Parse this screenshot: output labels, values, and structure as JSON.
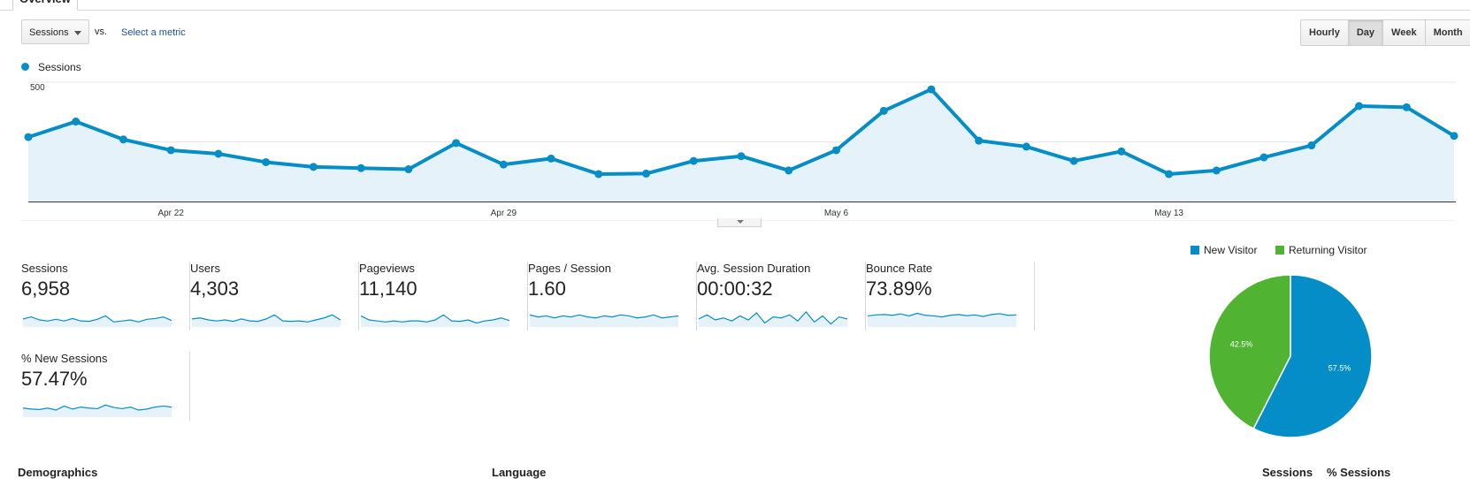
{
  "tabs": {
    "overview": "Overview"
  },
  "toolbar": {
    "metric": "Sessions",
    "vs": "vs.",
    "select_metric": "Select a metric",
    "granularity": [
      "Hourly",
      "Day",
      "Week",
      "Month"
    ],
    "active_granularity": "Day"
  },
  "chart_data": {
    "type": "area",
    "series": [
      {
        "name": "Sessions",
        "color": "#058dc7",
        "values": [
          270,
          335,
          260,
          215,
          200,
          165,
          145,
          140,
          135,
          245,
          155,
          180,
          115,
          117,
          170,
          190,
          130,
          215,
          380,
          470,
          255,
          230,
          170,
          210,
          115,
          130,
          185,
          235,
          400,
          395,
          275
        ]
      }
    ],
    "ylim": [
      0,
      500
    ],
    "y_ticks": [
      "500",
      "250"
    ],
    "x_tick_labels": [
      {
        "label": "Apr 22",
        "index": 3
      },
      {
        "label": "Apr 29",
        "index": 10
      },
      {
        "label": "May 6",
        "index": 17
      },
      {
        "label": "May 13",
        "index": 24
      }
    ],
    "grid": true
  },
  "metrics": [
    {
      "label": "Sessions",
      "value": "6,958",
      "spark": [
        0.4,
        0.5,
        0.35,
        0.3,
        0.38,
        0.3,
        0.42,
        0.3,
        0.28,
        0.38,
        0.55,
        0.25,
        0.3,
        0.35,
        0.25,
        0.38,
        0.42,
        0.5,
        0.32
      ]
    },
    {
      "label": "Users",
      "value": "4,303",
      "spark": [
        0.4,
        0.45,
        0.35,
        0.3,
        0.35,
        0.28,
        0.4,
        0.3,
        0.28,
        0.4,
        0.6,
        0.3,
        0.28,
        0.3,
        0.25,
        0.35,
        0.45,
        0.6,
        0.35
      ]
    },
    {
      "label": "Pageviews",
      "value": "11,140",
      "spark": [
        0.55,
        0.35,
        0.3,
        0.25,
        0.3,
        0.25,
        0.3,
        0.3,
        0.25,
        0.35,
        0.6,
        0.3,
        0.28,
        0.35,
        0.2,
        0.3,
        0.35,
        0.45,
        0.32
      ]
    },
    {
      "label": "Pages / Session",
      "value": "1.60",
      "spark": [
        0.6,
        0.5,
        0.55,
        0.45,
        0.55,
        0.5,
        0.6,
        0.5,
        0.45,
        0.55,
        0.5,
        0.6,
        0.55,
        0.45,
        0.5,
        0.6,
        0.45,
        0.5,
        0.55
      ]
    },
    {
      "label": "Avg. Session Duration",
      "value": "00:00:32",
      "spark": [
        0.4,
        0.6,
        0.35,
        0.45,
        0.3,
        0.55,
        0.35,
        0.7,
        0.2,
        0.5,
        0.45,
        0.6,
        0.3,
        0.75,
        0.25,
        0.55,
        0.15,
        0.5,
        0.4
      ]
    },
    {
      "label": "Bounce Rate",
      "value": "73.89%",
      "spark": [
        0.55,
        0.6,
        0.62,
        0.58,
        0.65,
        0.55,
        0.68,
        0.58,
        0.55,
        0.5,
        0.58,
        0.62,
        0.56,
        0.6,
        0.52,
        0.62,
        0.66,
        0.58,
        0.6
      ]
    },
    {
      "label": "% New Sessions",
      "value": "57.47%",
      "spark": [
        0.45,
        0.4,
        0.38,
        0.45,
        0.35,
        0.55,
        0.4,
        0.5,
        0.45,
        0.42,
        0.6,
        0.48,
        0.42,
        0.5,
        0.35,
        0.4,
        0.5,
        0.55,
        0.5
      ]
    }
  ],
  "pie": {
    "legend": [
      {
        "label": "New Visitor",
        "color": "#058dc7",
        "value": 57.5,
        "text": "57.5%"
      },
      {
        "label": "Returning Visitor",
        "color": "#50b432",
        "value": 42.5,
        "text": "42.5%"
      }
    ]
  },
  "bottom": {
    "demographics": "Demographics",
    "language": "Language",
    "sessions": "Sessions",
    "pct_sessions": "% Sessions"
  }
}
